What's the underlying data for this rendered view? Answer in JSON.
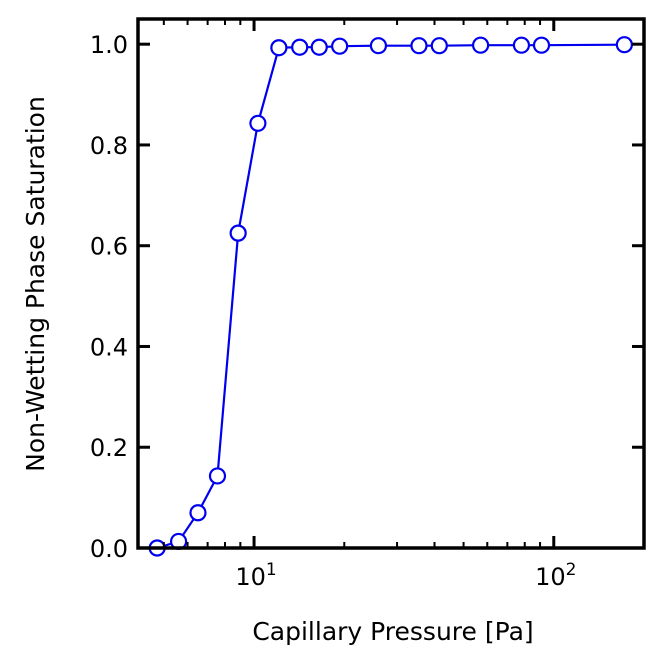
{
  "chart_data": {
    "type": "line",
    "xlabel": "Capillary Pressure [Pa]",
    "ylabel": "Non-Wetting Phase Saturation",
    "xscale": "log",
    "xlim": [
      4.1,
      200
    ],
    "ylim": [
      0.0,
      1.05
    ],
    "x_tick_labels": [
      {
        "value": 10,
        "base": "10",
        "exp": "1"
      },
      {
        "value": 100,
        "base": "10",
        "exp": "2"
      }
    ],
    "y_ticks": [
      0.0,
      0.2,
      0.4,
      0.6,
      0.8,
      1.0
    ],
    "y_tick_labels": [
      "0.0",
      "0.2",
      "0.4",
      "0.6",
      "0.8",
      "1.0"
    ],
    "grid": false,
    "series": [
      {
        "color": "#0000ee",
        "marker": "open-circle",
        "x": [
          4.75,
          5.6,
          6.5,
          7.55,
          8.85,
          10.3,
          12.1,
          14.2,
          16.5,
          19.3,
          26.0,
          35.5,
          41.5,
          57.0,
          78.0,
          91.0,
          172.0
        ],
        "y": [
          0.0,
          0.013,
          0.07,
          0.143,
          0.625,
          0.843,
          0.993,
          0.994,
          0.994,
          0.996,
          0.997,
          0.997,
          0.997,
          0.998,
          0.998,
          0.998,
          0.999
        ]
      }
    ]
  }
}
